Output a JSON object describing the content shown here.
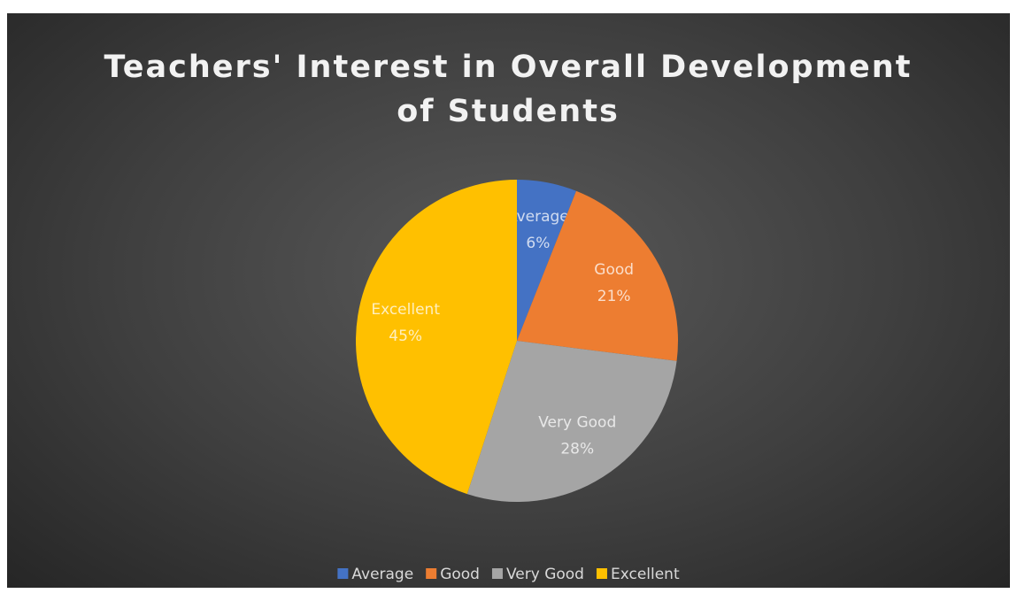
{
  "chart_data": {
    "type": "pie",
    "title": "Teachers' Interest in Overall Development of Students",
    "categories": [
      "Average",
      "Good",
      "Very Good",
      "Excellent"
    ],
    "values": [
      6,
      21,
      28,
      45
    ],
    "value_labels": [
      "6%",
      "21%",
      "28%",
      "45%"
    ],
    "colors": [
      "#4472c4",
      "#ed7d31",
      "#a5a5a5",
      "#ffc000"
    ],
    "legend": "bottom"
  }
}
